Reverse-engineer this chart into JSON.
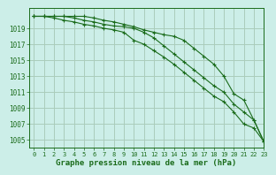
{
  "title": "Graphe pression niveau de la mer (hPa)",
  "background_color": "#cceee8",
  "grid_color": "#aaccbb",
  "line_color": "#1a6b1a",
  "xlim": [
    -0.5,
    23
  ],
  "ylim": [
    1004,
    1021.5
  ],
  "yticks": [
    1005,
    1007,
    1009,
    1011,
    1013,
    1015,
    1017,
    1019
  ],
  "xticks": [
    0,
    1,
    2,
    3,
    4,
    5,
    6,
    7,
    8,
    9,
    10,
    11,
    12,
    13,
    14,
    15,
    16,
    17,
    18,
    19,
    20,
    21,
    22,
    23
  ],
  "series": [
    [
      1020.5,
      1020.5,
      1020.3,
      1020.0,
      1019.8,
      1019.5,
      1019.3,
      1019.0,
      1018.8,
      1018.5,
      1017.5,
      1017.0,
      1016.2,
      1015.4,
      1014.5,
      1013.5,
      1012.5,
      1011.5,
      1010.5,
      1009.8,
      1008.5,
      1007.0,
      1006.5,
      1004.8
    ],
    [
      1020.5,
      1020.5,
      1020.5,
      1020.5,
      1020.3,
      1020.0,
      1019.8,
      1019.5,
      1019.3,
      1019.2,
      1019.0,
      1018.5,
      1017.8,
      1016.8,
      1015.8,
      1014.8,
      1013.8,
      1012.8,
      1011.8,
      1011.0,
      1009.5,
      1008.5,
      1007.5,
      1004.8
    ],
    [
      1020.5,
      1020.5,
      1020.5,
      1020.5,
      1020.5,
      1020.5,
      1020.3,
      1020.0,
      1019.8,
      1019.5,
      1019.2,
      1018.8,
      1018.5,
      1018.2,
      1018.0,
      1017.5,
      1016.5,
      1015.5,
      1014.5,
      1013.0,
      1010.8,
      1010.0,
      1007.5,
      1004.8
    ]
  ]
}
